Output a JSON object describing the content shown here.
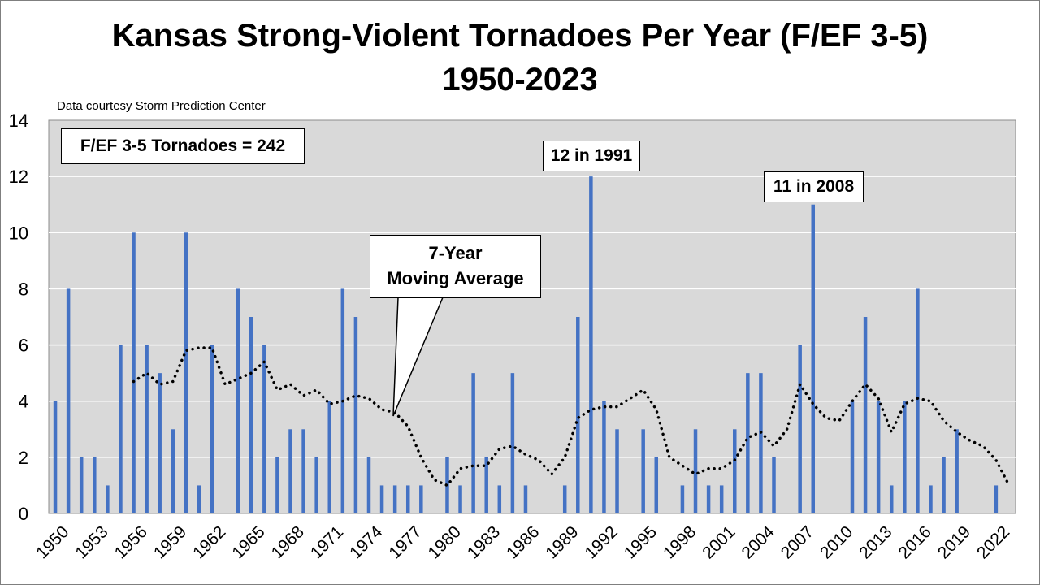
{
  "title_line1": "Kansas Strong-Violent Tornadoes Per Year (F/EF 3-5)",
  "title_line2": "1950-2023",
  "credit": "Data courtesy Storm Prediction Center",
  "annotations": {
    "total": "F/EF 3-5 Tornadoes = 242",
    "peak_1991": "12 in 1991",
    "peak_2008": "11 in 2008",
    "moving_avg_line1": "7-Year",
    "moving_avg_line2": "Moving Average"
  },
  "colors": {
    "bar": "#4472C4",
    "plot_bg": "#D9D9D9",
    "grid": "#FFFFFF",
    "moving_avg": "#000000"
  },
  "chart_data": {
    "type": "bar",
    "title": "Kansas Strong-Violent Tornadoes Per Year (F/EF 3-5) 1950-2023",
    "x": [
      1950,
      1951,
      1952,
      1953,
      1954,
      1955,
      1956,
      1957,
      1958,
      1959,
      1960,
      1961,
      1962,
      1963,
      1964,
      1965,
      1966,
      1967,
      1968,
      1969,
      1970,
      1971,
      1972,
      1973,
      1974,
      1975,
      1976,
      1977,
      1978,
      1979,
      1980,
      1981,
      1982,
      1983,
      1984,
      1985,
      1986,
      1987,
      1988,
      1989,
      1990,
      1991,
      1992,
      1993,
      1994,
      1995,
      1996,
      1997,
      1998,
      1999,
      2000,
      2001,
      2002,
      2003,
      2004,
      2005,
      2006,
      2007,
      2008,
      2009,
      2010,
      2011,
      2012,
      2013,
      2014,
      2015,
      2016,
      2017,
      2018,
      2019,
      2020,
      2021,
      2022,
      2023
    ],
    "series": [
      {
        "values": [
          4,
          8,
          2,
          2,
          1,
          6,
          10,
          6,
          5,
          3,
          10,
          1,
          6,
          0,
          8,
          7,
          6,
          2,
          3,
          3,
          2,
          4,
          8,
          7,
          2,
          1,
          1,
          1,
          1,
          0,
          2,
          1,
          5,
          2,
          1,
          5,
          1,
          0,
          0,
          1,
          7,
          12,
          4,
          3,
          0,
          3,
          2,
          0,
          1,
          3,
          1,
          1,
          3,
          5,
          5,
          2,
          0,
          6,
          11,
          0,
          0,
          4,
          7,
          4,
          1,
          4,
          8,
          1,
          2,
          3,
          0,
          0,
          1,
          0
        ]
      },
      {
        "type": "line",
        "style": "dotted",
        "values": [
          null,
          null,
          null,
          null,
          null,
          null,
          4.7,
          5.0,
          4.6,
          4.7,
          5.8,
          5.9,
          5.9,
          4.6,
          4.8,
          5.0,
          5.4,
          4.4,
          4.6,
          4.2,
          4.4,
          3.9,
          4.0,
          4.2,
          4.1,
          3.7,
          3.6,
          3.1,
          2.0,
          1.2,
          1.0,
          1.6,
          1.7,
          1.7,
          2.3,
          2.4,
          2.1,
          1.9,
          1.4,
          2.0,
          3.4,
          3.7,
          3.8,
          3.8,
          4.1,
          4.4,
          3.7,
          2.0,
          1.7,
          1.4,
          1.6,
          1.6,
          1.9,
          2.7,
          2.9,
          2.4,
          3.0,
          4.6,
          3.9,
          3.4,
          3.3,
          4.0,
          4.6,
          4.1,
          2.9,
          3.9,
          4.1,
          4.0,
          3.3,
          2.9,
          2.6,
          2.4,
          1.9,
          1.0
        ]
      }
    ],
    "xtick_labels": [
      "1950",
      "1953",
      "1956",
      "1959",
      "1962",
      "1965",
      "1968",
      "1971",
      "1974",
      "1977",
      "1980",
      "1983",
      "1986",
      "1989",
      "1992",
      "1995",
      "1998",
      "2001",
      "2004",
      "2007",
      "2010",
      "2013",
      "2016",
      "2019",
      "2022"
    ],
    "yticks": [
      0,
      2,
      4,
      6,
      8,
      10,
      12,
      14
    ],
    "ylim": [
      0,
      14
    ],
    "grid": true,
    "xlabel": "",
    "ylabel": ""
  }
}
